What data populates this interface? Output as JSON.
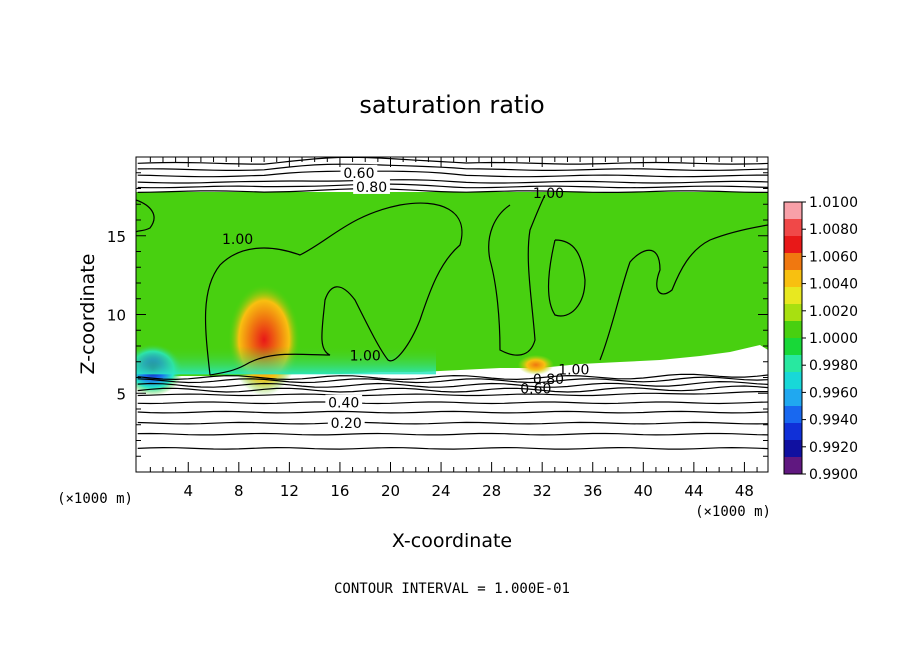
{
  "chart_data": {
    "type": "heatmap",
    "title": "saturation ratio",
    "xlabel": "X-coordinate",
    "ylabel": "Z-coordinate",
    "x_unit_label": "(×1000 m)",
    "y_unit_label": "(×1000 m)",
    "footer": "CONTOUR INTERVAL = 1.000E-01",
    "xlim": [
      0,
      50
    ],
    "ylim": [
      0,
      20
    ],
    "x_ticks": [
      4,
      8,
      12,
      16,
      20,
      24,
      28,
      32,
      36,
      40,
      44,
      48
    ],
    "y_ticks": [
      5,
      10,
      15
    ],
    "colorbar": {
      "min": 0.99,
      "max": 1.01,
      "tick_labels": [
        "1.0100",
        "1.0080",
        "1.0060",
        "1.0040",
        "1.0020",
        "1.0000",
        "0.9980",
        "0.9960",
        "0.9940",
        "0.9920",
        "0.9900"
      ],
      "tick_values": [
        1.01,
        1.008,
        1.006,
        1.004,
        1.002,
        1.0,
        0.998,
        0.996,
        0.994,
        0.992,
        0.99
      ],
      "colors": [
        "#f8a0a8",
        "#f04848",
        "#e81818",
        "#f07810",
        "#f8c010",
        "#e8e820",
        "#a8e010",
        "#48d010",
        "#18d838",
        "#28e8a0",
        "#18d8d8",
        "#20a8f0",
        "#1868f0",
        "#1030d8",
        "#1010a0",
        "#601880"
      ]
    },
    "field": {
      "background_value": 0.9995,
      "features": [
        {
          "name": "red warm core",
          "x": 10,
          "z": 8.4,
          "value": 1.0065
        },
        {
          "name": "blue dry pocket",
          "x": 1.2,
          "z": 6.5,
          "value": 0.991
        },
        {
          "name": "cyan lower band",
          "x": 16,
          "z": 6.7,
          "value": 0.997
        },
        {
          "name": "yellow patch",
          "x": 31.5,
          "z": 6.8,
          "value": 1.004
        }
      ]
    },
    "contour_labels": [
      {
        "text": "0.60",
        "x": 17.5,
        "z": 19.0
      },
      {
        "text": "0.80",
        "x": 18.5,
        "z": 18.1
      },
      {
        "text": "1.00",
        "x": 32.5,
        "z": 17.7
      },
      {
        "text": "1.00",
        "x": 7.9,
        "z": 14.8
      },
      {
        "text": "1.00",
        "x": 18.0,
        "z": 7.4
      },
      {
        "text": "1.00",
        "x": 34.5,
        "z": 6.5
      },
      {
        "text": "0.80",
        "x": 32.5,
        "z": 5.9
      },
      {
        "text": "0.60",
        "x": 31.5,
        "z": 5.3
      },
      {
        "text": "0.40",
        "x": 16.3,
        "z": 4.4
      },
      {
        "text": "0.20",
        "x": 16.5,
        "z": 3.1
      }
    ],
    "contour_levels_lower": [
      0.2,
      0.4,
      0.6,
      0.8
    ],
    "grid": false,
    "legend_placement": "right"
  }
}
